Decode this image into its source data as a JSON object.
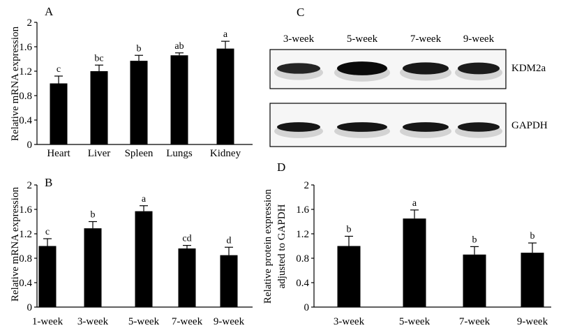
{
  "chart_data": [
    {
      "type": "bar",
      "panel_label": "A",
      "ylabel": "Relative mRNA expression",
      "categories": [
        "Heart",
        "Liver",
        "Spleen",
        "Lungs",
        "Kidney"
      ],
      "values": [
        1.0,
        1.2,
        1.37,
        1.46,
        1.57
      ],
      "errors": [
        0.12,
        0.1,
        0.09,
        0.04,
        0.12
      ],
      "letters": [
        "c",
        "bc",
        "b",
        "ab",
        "a"
      ],
      "ylim": [
        0,
        2
      ],
      "yticks": [
        "0",
        "0.4",
        "0.8",
        "1.2",
        "1.6",
        "2"
      ],
      "bar_color": "#000000"
    },
    {
      "type": "bar",
      "panel_label": "B",
      "ylabel": "Relative mRNA expression",
      "categories": [
        "1-week",
        "3-week",
        "5-week",
        "7-week",
        "9-week"
      ],
      "values": [
        1.0,
        1.29,
        1.57,
        0.96,
        0.85
      ],
      "errors": [
        0.12,
        0.11,
        0.09,
        0.05,
        0.13
      ],
      "letters": [
        "c",
        "b",
        "a",
        "cd",
        "d"
      ],
      "ylim": [
        0,
        2
      ],
      "yticks": [
        "0",
        "0.4",
        "0.8",
        "1.2",
        "1.6",
        "2"
      ],
      "bar_color": "#000000"
    },
    {
      "type": "bar",
      "panel_label": "D",
      "ylabel": "Relative protein expression",
      "ylabel2": "adjusted to GAPDH",
      "categories": [
        "3-week",
        "5-week",
        "7-week",
        "9-week"
      ],
      "values": [
        1.0,
        1.45,
        0.86,
        0.89
      ],
      "errors": [
        0.16,
        0.14,
        0.13,
        0.16
      ],
      "letters": [
        "b",
        "a",
        "b",
        "b"
      ],
      "ylim": [
        0,
        2
      ],
      "yticks": [
        "0",
        "0.4",
        "0.8",
        "1.2",
        "1.6",
        "2"
      ],
      "bar_color": "#000000"
    }
  ],
  "blot": {
    "panel_label": "C",
    "lanes": [
      "3-week",
      "5-week",
      "7-week",
      "9-week"
    ],
    "proteins": [
      "KDM2a",
      "GAPDH"
    ],
    "kdm2a_intensity": [
      0.55,
      1.0,
      0.75,
      0.7
    ],
    "gapdh_intensity": [
      0.8,
      0.8,
      0.8,
      0.75
    ]
  }
}
